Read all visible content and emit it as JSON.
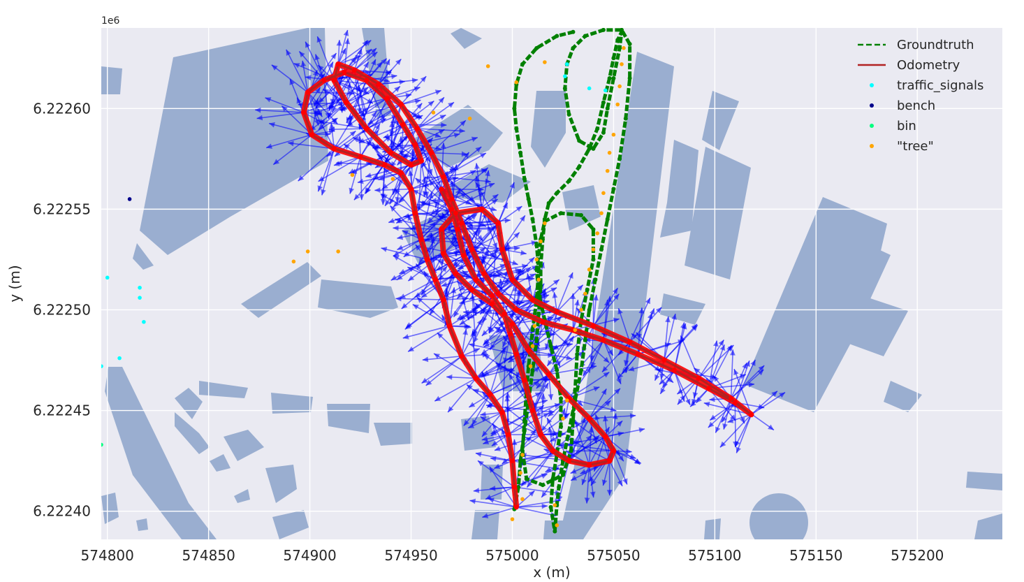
{
  "chart_data": {
    "type": "scatter",
    "title": "",
    "xlabel": "x (m)",
    "ylabel": "y (m)",
    "y_offset_label": "1e6",
    "xlim": [
      574797,
      575242
    ],
    "ylim": [
      6222386,
      6222640
    ],
    "xticks": [
      574800,
      574850,
      574900,
      574950,
      575000,
      575050,
      575100,
      575150,
      575200
    ],
    "yticks": [
      6222400,
      6222450,
      6222500,
      6222550,
      6222600
    ],
    "xtick_labels": [
      "574800",
      "574850",
      "574900",
      "574950",
      "575000",
      "575050",
      "575100",
      "575150",
      "575200"
    ],
    "ytick_labels": [
      "6.22240",
      "6.22245",
      "6.22250",
      "6.22255",
      "6.22260"
    ],
    "grid": true,
    "legend_position": "top-right",
    "legend": [
      {
        "label": "Groundtruth",
        "kind": "dashed-line",
        "color": "#008000"
      },
      {
        "label": "Odometry",
        "kind": "line",
        "color": "#b22222"
      },
      {
        "label": "traffic_signals",
        "kind": "point",
        "color": "#00ffff"
      },
      {
        "label": "bench",
        "kind": "point",
        "color": "#00008b"
      },
      {
        "label": "bin",
        "kind": "point",
        "color": "#00ff7f"
      },
      {
        "label": "\"tree\"",
        "kind": "point",
        "color": "#ffa500"
      }
    ],
    "colors": {
      "background": "#eaeaf2",
      "buildings": "#9aaed0",
      "groundtruth": "#008000",
      "odometry": "#b22222",
      "odometry_markers": "#ff0000",
      "arrows": "#0000ff"
    },
    "series": [
      {
        "name": "Groundtruth",
        "color": "#008000",
        "points": [
          [
            575001,
            6222401
          ],
          [
            575003,
            6222412
          ],
          [
            575004,
            6222425
          ],
          [
            575006,
            6222440
          ],
          [
            575008,
            6222455
          ],
          [
            575010,
            6222470
          ],
          [
            575012,
            6222485
          ],
          [
            575013,
            6222498
          ],
          [
            575014,
            6222512
          ],
          [
            575014,
            6222522
          ],
          [
            575015,
            6222535
          ],
          [
            575016,
            6222545
          ],
          [
            575018,
            6222553
          ],
          [
            575022,
            6222558
          ],
          [
            575028,
            6222564
          ],
          [
            575033,
            6222571
          ],
          [
            575038,
            6222580
          ],
          [
            575042,
            6222590
          ],
          [
            575045,
            6222603
          ],
          [
            575048,
            6222615
          ],
          [
            575050,
            6222625
          ],
          [
            575052,
            6222634
          ],
          [
            575054,
            6222638
          ],
          [
            575053,
            6222630
          ],
          [
            575050,
            6222615
          ],
          [
            575047,
            6222600
          ],
          [
            575045,
            6222588
          ],
          [
            575040,
            6222580
          ],
          [
            575033,
            6222584
          ],
          [
            575028,
            6222597
          ],
          [
            575026,
            6222610
          ],
          [
            575027,
            6222622
          ],
          [
            575030,
            6222630
          ],
          [
            575036,
            6222636
          ],
          [
            575045,
            6222639
          ],
          [
            575054,
            6222639
          ],
          [
            575058,
            6222632
          ],
          [
            575058,
            6222615
          ],
          [
            575056,
            6222595
          ],
          [
            575053,
            6222575
          ],
          [
            575050,
            6222560
          ],
          [
            575047,
            6222545
          ],
          [
            575044,
            6222530
          ],
          [
            575041,
            6222515
          ],
          [
            575038,
            6222500
          ],
          [
            575036,
            6222485
          ],
          [
            575034,
            6222470
          ],
          [
            575031,
            6222455
          ],
          [
            575028,
            6222440
          ],
          [
            575025,
            6222425
          ],
          [
            575023,
            6222412
          ],
          [
            575022,
            6222403
          ],
          [
            575021,
            6222390
          ],
          [
            575019,
            6222402
          ],
          [
            575020,
            6222416
          ],
          [
            575022,
            6222428
          ],
          [
            575024,
            6222442
          ],
          [
            575024,
            6222456
          ],
          [
            575022,
            6222470
          ],
          [
            575019,
            6222482
          ],
          [
            575016,
            6222495
          ],
          [
            575013,
            6222508
          ],
          [
            575012,
            6222520
          ],
          [
            575014,
            6222535
          ],
          [
            575016,
            6222544
          ],
          [
            575024,
            6222548
          ],
          [
            575034,
            6222547
          ],
          [
            575040,
            6222540
          ],
          [
            575040,
            6222525
          ],
          [
            575037,
            6222510
          ],
          [
            575034,
            6222495
          ],
          [
            575032,
            6222478
          ],
          [
            575031,
            6222460
          ],
          [
            575030,
            6222445
          ],
          [
            575029,
            6222430
          ],
          [
            575025,
            6222418
          ],
          [
            575015,
            6222413
          ],
          [
            575007,
            6222416
          ],
          [
            575005,
            6222430
          ],
          [
            575006,
            6222445
          ],
          [
            575007,
            6222460
          ],
          [
            575008,
            6222472
          ],
          [
            575010,
            6222490
          ],
          [
            575012,
            6222505
          ],
          [
            575013,
            6222520
          ],
          [
            575012,
            6222532
          ],
          [
            575010,
            6222545
          ],
          [
            575008,
            6222555
          ],
          [
            575006,
            6222565
          ],
          [
            575004,
            6222578
          ],
          [
            575002,
            6222590
          ],
          [
            575001,
            6222600
          ],
          [
            575002,
            6222612
          ],
          [
            575005,
            6222622
          ],
          [
            575012,
            6222630
          ],
          [
            575022,
            6222636
          ],
          [
            575030,
            6222638
          ]
        ]
      },
      {
        "name": "Odometry",
        "color": "#b22222",
        "points": [
          [
            575002,
            6222402
          ],
          [
            575001,
            6222412
          ],
          [
            575000,
            6222425
          ],
          [
            574998,
            6222438
          ],
          [
            574995,
            6222449
          ],
          [
            574989,
            6222458
          ],
          [
            574982,
            6222466
          ],
          [
            574975,
            6222477
          ],
          [
            574969,
            6222492
          ],
          [
            574966,
            6222505
          ],
          [
            574962,
            6222515
          ],
          [
            574958,
            6222525
          ],
          [
            574955,
            6222535
          ],
          [
            574952,
            6222548
          ],
          [
            574950,
            6222560
          ],
          [
            574945,
            6222568
          ],
          [
            574937,
            6222572
          ],
          [
            574925,
            6222576
          ],
          [
            574912,
            6222580
          ],
          [
            574901,
            6222587
          ],
          [
            574897,
            6222598
          ],
          [
            574899,
            6222608
          ],
          [
            574907,
            6222614
          ],
          [
            574917,
            6222618
          ],
          [
            574928,
            6222614
          ],
          [
            574938,
            6222605
          ],
          [
            574946,
            6222592
          ],
          [
            574952,
            6222582
          ],
          [
            574955,
            6222574
          ],
          [
            574950,
            6222572
          ],
          [
            574940,
            6222578
          ],
          [
            574928,
            6222590
          ],
          [
            574918,
            6222603
          ],
          [
            574912,
            6222614
          ],
          [
            574914,
            6222622
          ],
          [
            574922,
            6222619
          ],
          [
            574934,
            6222612
          ],
          [
            574945,
            6222602
          ],
          [
            574953,
            6222590
          ],
          [
            574960,
            6222578
          ],
          [
            574966,
            6222566
          ],
          [
            574970,
            6222555
          ],
          [
            574975,
            6222543
          ],
          [
            574980,
            6222530
          ],
          [
            574986,
            6222518
          ],
          [
            574993,
            6222508
          ],
          [
            575002,
            6222500
          ],
          [
            575015,
            6222494
          ],
          [
            575030,
            6222490
          ],
          [
            575045,
            6222485
          ],
          [
            575062,
            6222478
          ],
          [
            575080,
            6222470
          ],
          [
            575097,
            6222461
          ],
          [
            575110,
            6222454
          ],
          [
            575118,
            6222448
          ],
          [
            575108,
            6222456
          ],
          [
            575092,
            6222466
          ],
          [
            575075,
            6222475
          ],
          [
            575058,
            6222484
          ],
          [
            575040,
            6222492
          ],
          [
            575022,
            6222499
          ],
          [
            575010,
            6222505
          ],
          [
            575000,
            6222515
          ],
          [
            574995,
            6222530
          ],
          [
            574993,
            6222543
          ],
          [
            574985,
            6222550
          ],
          [
            574972,
            6222548
          ],
          [
            574965,
            6222540
          ],
          [
            574966,
            6222528
          ],
          [
            574972,
            6222518
          ],
          [
            574980,
            6222510
          ],
          [
            574990,
            6222503
          ],
          [
            575000,
            6222493
          ],
          [
            575008,
            6222480
          ],
          [
            575018,
            6222468
          ],
          [
            575028,
            6222456
          ],
          [
            575038,
            6222446
          ],
          [
            575046,
            6222437
          ],
          [
            575050,
            6222430
          ],
          [
            575048,
            6222425
          ],
          [
            575038,
            6222423
          ],
          [
            575028,
            6222425
          ],
          [
            575020,
            6222430
          ],
          [
            575014,
            6222438
          ],
          [
            575010,
            6222450
          ],
          [
            575006,
            6222465
          ],
          [
            575002,
            6222478
          ],
          [
            574999,
            6222488
          ],
          [
            574996,
            6222498
          ],
          [
            574990,
            6222507
          ],
          [
            574982,
            6222515
          ],
          [
            574976,
            6222527
          ],
          [
            574973,
            6222540
          ],
          [
            574970,
            6222550
          ],
          [
            574965,
            6222560
          ]
        ]
      },
      {
        "name": "traffic_signals",
        "color": "#00ffff",
        "points": [
          [
            575027,
            6222622
          ],
          [
            575026,
            6222616
          ],
          [
            575038,
            6222610
          ],
          [
            575046,
            6222609
          ],
          [
            574800,
            6222516
          ],
          [
            574816,
            6222511
          ],
          [
            574816,
            6222506
          ],
          [
            574818,
            6222494
          ],
          [
            574806,
            6222476
          ],
          [
            574797,
            6222472
          ]
        ]
      },
      {
        "name": "bench",
        "color": "#00008b",
        "points": [
          [
            574811,
            6222555
          ]
        ]
      },
      {
        "name": "bin",
        "color": "#00ff7f",
        "points": [
          [
            574797,
            6222433
          ]
        ]
      },
      {
        "name": "\"tree\"",
        "color": "#ffa500",
        "points": [
          [
            574988,
            6222621
          ],
          [
            575002,
            6222613
          ],
          [
            575016,
            6222623
          ],
          [
            575055,
            6222630
          ],
          [
            575054,
            6222622
          ],
          [
            575053,
            6222611
          ],
          [
            575052,
            6222602
          ],
          [
            574961,
            6222598
          ],
          [
            574979,
            6222595
          ],
          [
            575050,
            6222587
          ],
          [
            575048,
            6222578
          ],
          [
            575047,
            6222569
          ],
          [
            574941,
            6222565
          ],
          [
            574921,
            6222567
          ],
          [
            575045,
            6222558
          ],
          [
            575044,
            6222548
          ],
          [
            575042,
            6222538
          ],
          [
            575040,
            6222530
          ],
          [
            575038,
            6222520
          ],
          [
            574899,
            6222529
          ],
          [
            574914,
            6222529
          ],
          [
            574892,
            6222524
          ],
          [
            575016,
            6222543
          ],
          [
            575014,
            6222534
          ],
          [
            575012,
            6222525
          ],
          [
            575013,
            6222515
          ],
          [
            575036,
            6222508
          ],
          [
            575034,
            6222500
          ],
          [
            575031,
            6222490
          ],
          [
            575011,
            6222492
          ],
          [
            575010,
            6222482
          ],
          [
            575009,
            6222472
          ],
          [
            575027,
            6222455
          ],
          [
            575025,
            6222446
          ],
          [
            575005,
            6222428
          ],
          [
            575004,
            6222419
          ],
          [
            575005,
            6222406
          ],
          [
            575021,
            6222403
          ],
          [
            575022,
            6222393
          ],
          [
            575000,
            6222396
          ]
        ]
      }
    ]
  }
}
